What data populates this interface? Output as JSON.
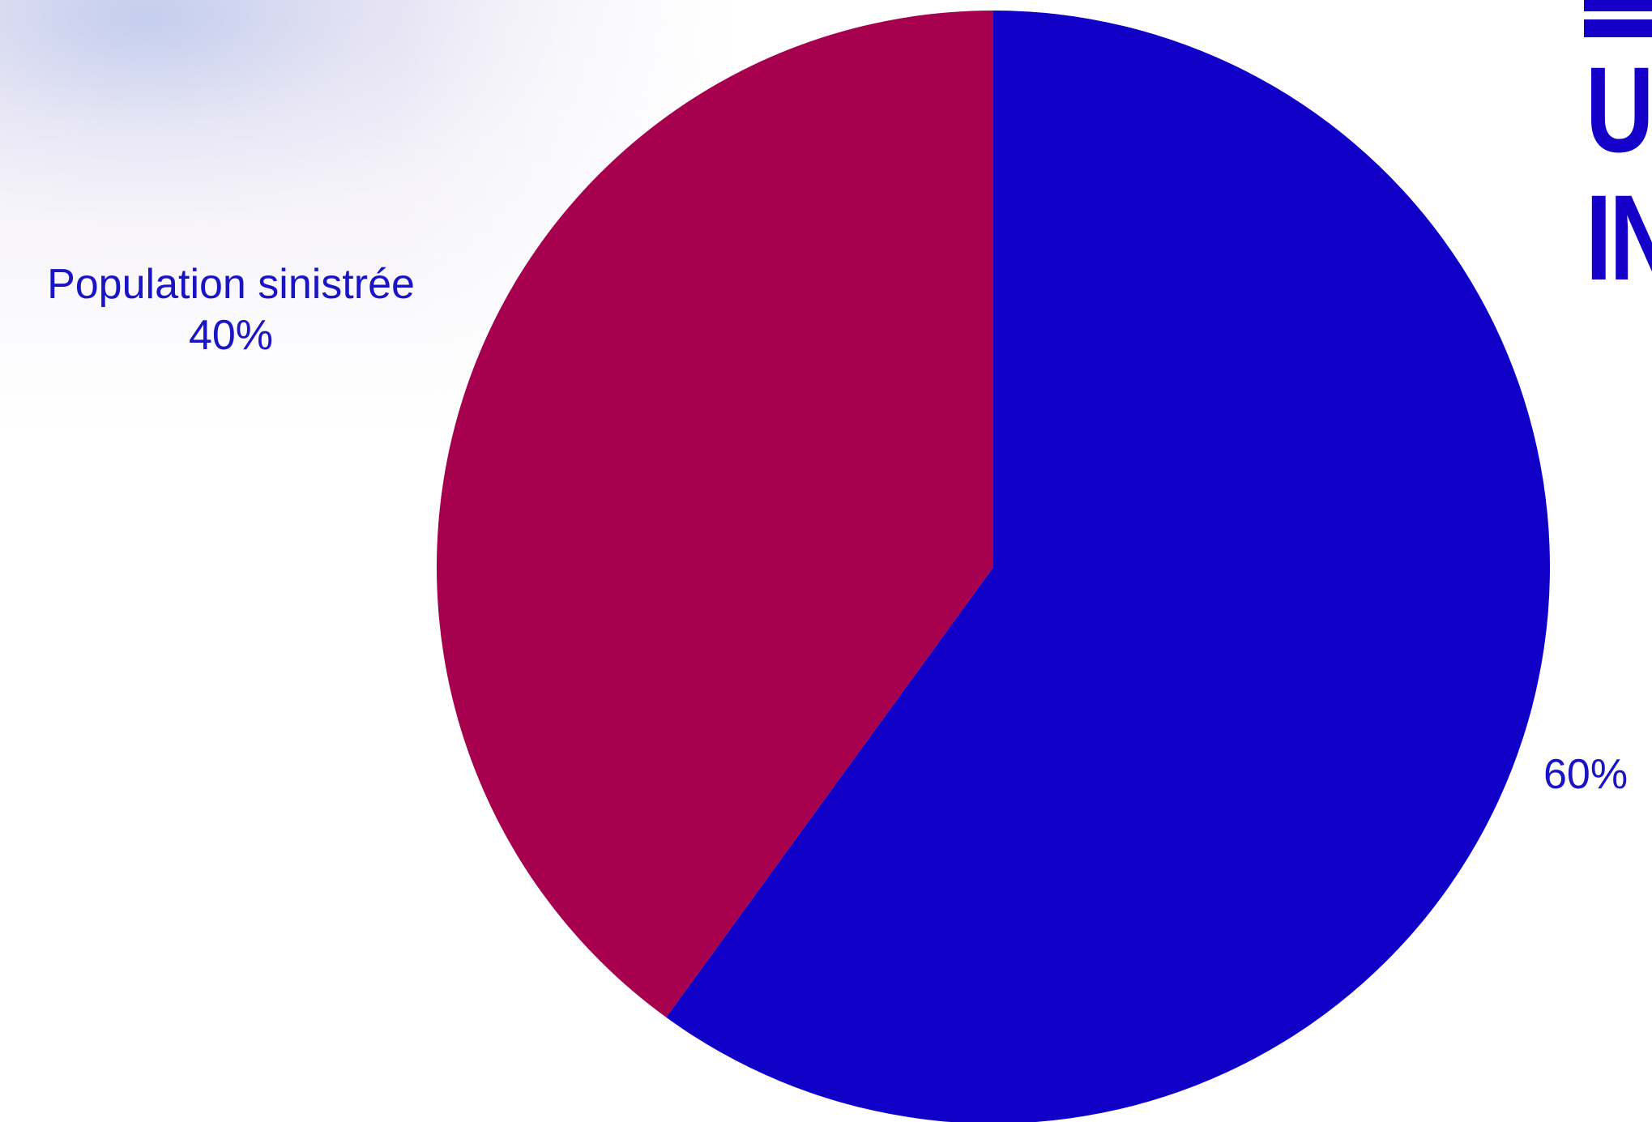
{
  "chart_data": {
    "type": "pie",
    "title": "",
    "slices": [
      {
        "label": "",
        "value": 60,
        "value_label": "60%",
        "color": "#1000c7"
      },
      {
        "label": "Population sinistrée",
        "value": 40,
        "value_label": "40%",
        "color": "#a6004f"
      }
    ],
    "start_angle": "12 o'clock",
    "direction": "clockwise",
    "legend": "none"
  },
  "logo": {
    "letters_line_1": "UI",
    "letters_line_2": "IN"
  },
  "colors": {
    "label_text": "#1a14c4",
    "logo": "#1400c8"
  }
}
